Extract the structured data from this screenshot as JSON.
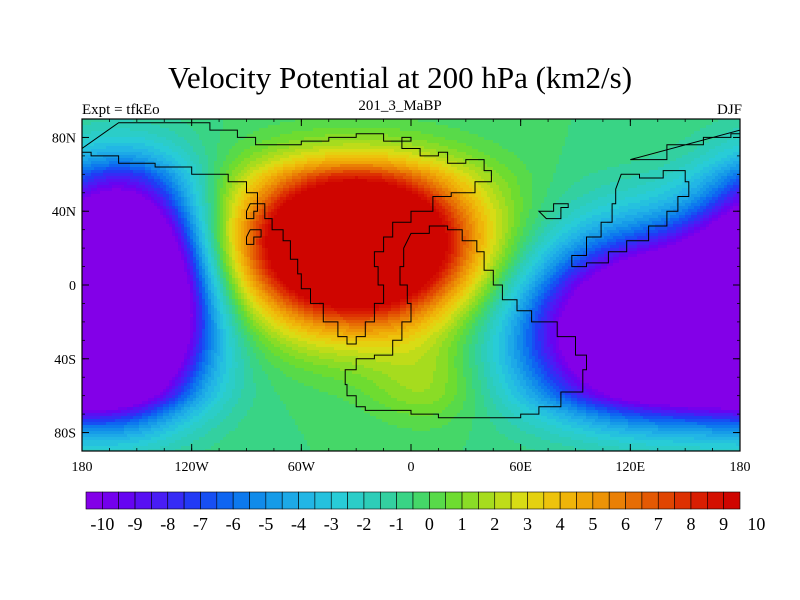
{
  "chart_data": {
    "type": "heatmap",
    "title": "Velocity Potential at 200 hPa (km2/s)",
    "subtitle_left": "Expt = tfkEo",
    "subtitle_center": "201_3_MaBP",
    "subtitle_right": "DJF",
    "x_ticks": [
      "180",
      "120W",
      "60W",
      "0",
      "60E",
      "120E",
      "180"
    ],
    "x_tick_values": [
      -180,
      -120,
      -60,
      0,
      60,
      120,
      180
    ],
    "y_ticks": [
      "80N",
      "40N",
      "0",
      "40S",
      "80S"
    ],
    "y_tick_values": [
      80,
      40,
      0,
      -40,
      -80
    ],
    "xlim": [
      -180,
      180
    ],
    "ylim": [
      -90,
      90
    ],
    "colorbar_labels": [
      "-10",
      "-9",
      "-8",
      "-7",
      "-6",
      "-5",
      "-4",
      "-3",
      "-2",
      "-1",
      "0",
      "1",
      "2",
      "3",
      "4",
      "5",
      "6",
      "7",
      "8",
      "9",
      "10"
    ],
    "colorbar_min": -10,
    "colorbar_max": 10,
    "colorbar_levels": 40,
    "features": [
      {
        "name": "positive-maximum",
        "lon": -30,
        "lat": 25,
        "value": 11
      },
      {
        "name": "east-pacific-minimum",
        "lon": -150,
        "lat": -5,
        "value": -10.5
      },
      {
        "name": "indo-pacific-minimum",
        "lon": 145,
        "lat": -25,
        "value": -10.5
      }
    ],
    "colormap": [
      "#8a00e6",
      "#6a00f0",
      "#4a1cf5",
      "#1f3cf5",
      "#0a6ef0",
      "#1496e8",
      "#22b4e6",
      "#28cdd7",
      "#2ecdb4",
      "#3cd678",
      "#66dc32",
      "#a5dc1e",
      "#dcdc14",
      "#f0be0a",
      "#ee9a06",
      "#e87004",
      "#e04402",
      "#d81802",
      "#cc0000"
    ]
  }
}
